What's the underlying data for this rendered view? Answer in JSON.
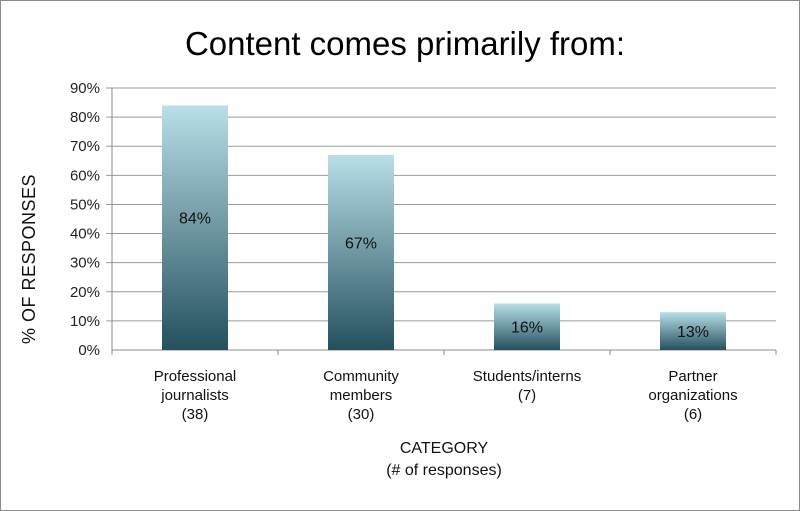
{
  "chart_data": {
    "type": "bar",
    "title": "Content comes primarily from:",
    "xlabel": [
      "CATEGORY",
      "(# of responses)"
    ],
    "ylabel": "% OF RESPONSES",
    "ylim": [
      0,
      90
    ],
    "yticks": [
      "0%",
      "10%",
      "20%",
      "30%",
      "40%",
      "50%",
      "60%",
      "70%",
      "80%",
      "90%"
    ],
    "categories": [
      [
        "Professional",
        "journalists",
        "(38)"
      ],
      [
        "Community",
        "members",
        "(30)"
      ],
      [
        "Students/interns",
        "(7)"
      ],
      [
        "Partner",
        "organizations",
        "(6)"
      ]
    ],
    "values": [
      84,
      67,
      16,
      13
    ],
    "data_labels": [
      "84%",
      "67%",
      "16%",
      "13%"
    ],
    "grid": true,
    "colors": {
      "bar_top": "#b9dfe8",
      "bar_bottom": "#24505e",
      "grid": "#9a9a9a",
      "axis": "#888888"
    }
  }
}
